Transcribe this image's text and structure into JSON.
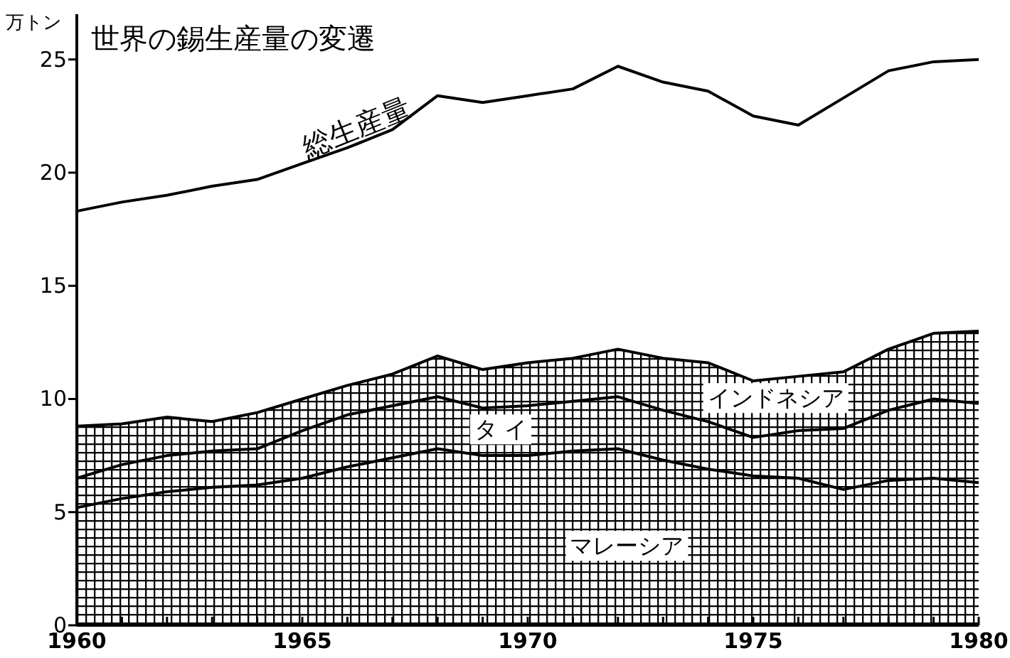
{
  "chart_data": {
    "type": "area",
    "title": "世界の錫生産量の変遷",
    "ylabel": "万トン",
    "stacked": true,
    "x": [
      1960,
      1961,
      1962,
      1963,
      1964,
      1965,
      1966,
      1967,
      1968,
      1969,
      1970,
      1971,
      1972,
      1973,
      1974,
      1975,
      1976,
      1977,
      1978,
      1979,
      1980
    ],
    "series": [
      {
        "name": "マレーシア",
        "color": "#000000",
        "values": [
          5.2,
          5.6,
          5.9,
          6.1,
          6.2,
          6.5,
          7.0,
          7.4,
          7.8,
          7.5,
          7.5,
          7.7,
          7.8,
          7.3,
          6.9,
          6.6,
          6.5,
          6.0,
          6.4,
          6.5,
          6.3
        ]
      },
      {
        "name": "タ イ",
        "color": "#000000",
        "values": [
          1.3,
          1.5,
          1.6,
          1.6,
          1.6,
          2.1,
          2.3,
          2.3,
          2.3,
          2.1,
          2.2,
          2.2,
          2.3,
          2.2,
          2.1,
          1.7,
          2.1,
          2.7,
          3.1,
          3.5,
          3.5
        ]
      },
      {
        "name": "インドネシア",
        "color": "#000000",
        "values": [
          2.3,
          1.8,
          1.7,
          1.3,
          1.6,
          1.4,
          1.3,
          1.4,
          1.8,
          1.7,
          1.9,
          1.9,
          2.1,
          2.3,
          2.6,
          2.5,
          2.4,
          2.5,
          2.7,
          2.9,
          3.2
        ]
      },
      {
        "name": "総生産量",
        "type": "line",
        "color": "#000000",
        "values": [
          18.3,
          18.7,
          19.0,
          19.4,
          19.7,
          20.4,
          21.1,
          21.9,
          23.4,
          23.1,
          23.4,
          23.7,
          24.7,
          24.0,
          23.6,
          22.5,
          22.1,
          23.3,
          24.5,
          24.9,
          25.0
        ]
      }
    ],
    "xlim": [
      1960,
      1980
    ],
    "ylim": [
      0,
      27
    ],
    "xticks": [
      1960,
      {
        "value": 1961,
        "label": null
      },
      {
        "value": 1962,
        "label": null
      },
      {
        "value": 1963,
        "label": null
      },
      {
        "value": 1964,
        "label": null
      },
      1965,
      {
        "value": 1966,
        "label": null
      },
      {
        "value": 1967,
        "label": null
      },
      {
        "value": 1968,
        "label": null
      },
      {
        "value": 1969,
        "label": null
      },
      1970,
      {
        "value": 1971,
        "label": null
      },
      {
        "value": 1972,
        "label": null
      },
      {
        "value": 1973,
        "label": null
      },
      {
        "value": 1974,
        "label": null
      },
      1975,
      {
        "value": 1976,
        "label": null
      },
      {
        "value": 1977,
        "label": null
      },
      {
        "value": 1978,
        "label": null
      },
      {
        "value": 1979,
        "label": null
      },
      1980
    ],
    "yticks": [
      0,
      5,
      10,
      15,
      20,
      25
    ],
    "grid": false
  }
}
